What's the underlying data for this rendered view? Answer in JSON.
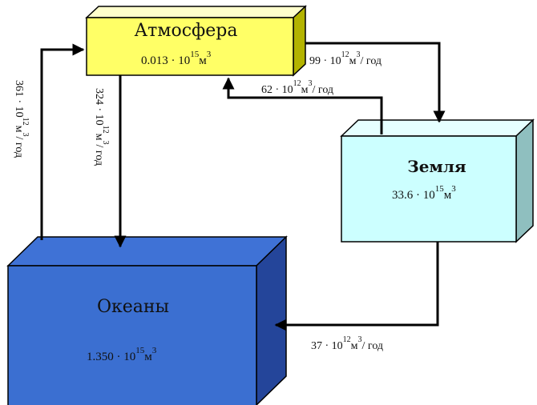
{
  "boxes": {
    "atmosphere": {
      "title": "Атмосфера",
      "mantissa": "0.013 · 10",
      "exp": "15",
      "unit": "м",
      "unit_exp": "3",
      "front": "#ffff66",
      "top": "#ffffcc",
      "side": "#b3b300"
    },
    "land": {
      "title": "Земля",
      "mantissa": "33.6 · 10",
      "exp": "15",
      "unit": "м",
      "unit_exp": "3",
      "front": "#ccffff",
      "top": "#e6ffff",
      "side": "#8fbfbf"
    },
    "oceans": {
      "title": "Океаны",
      "mantissa": "1.350 · 10",
      "exp": "15",
      "unit": "м",
      "unit_exp": "3",
      "front": "#3b6fd1",
      "top": "#3f72d6",
      "side": "#24459a"
    }
  },
  "flows": {
    "atm_to_land": {
      "mantissa": "99 · 10",
      "exp": "12",
      "unit": "м",
      "unit_exp": "3",
      "rest": "/ год"
    },
    "land_to_atm": {
      "mantissa": "62 · 10",
      "exp": "12",
      "unit": "м",
      "unit_exp": "3",
      "rest": "/ год"
    },
    "land_to_ocean": {
      "mantissa": "37 · 10",
      "exp": "12",
      "unit": "м",
      "unit_exp": "3",
      "rest": "/ год"
    },
    "ocean_to_atm": {
      "mantissa": "361 · 10",
      "exp": "12",
      "unit": "м",
      "unit_exp": "3",
      "rest": "/ год"
    },
    "atm_to_ocean": {
      "mantissa": "324 · 10",
      "exp": "12",
      "unit": "м",
      "unit_exp": "3",
      "rest": "/ год"
    }
  },
  "colors": {
    "arrow": "#000000",
    "edge": "#000000"
  }
}
